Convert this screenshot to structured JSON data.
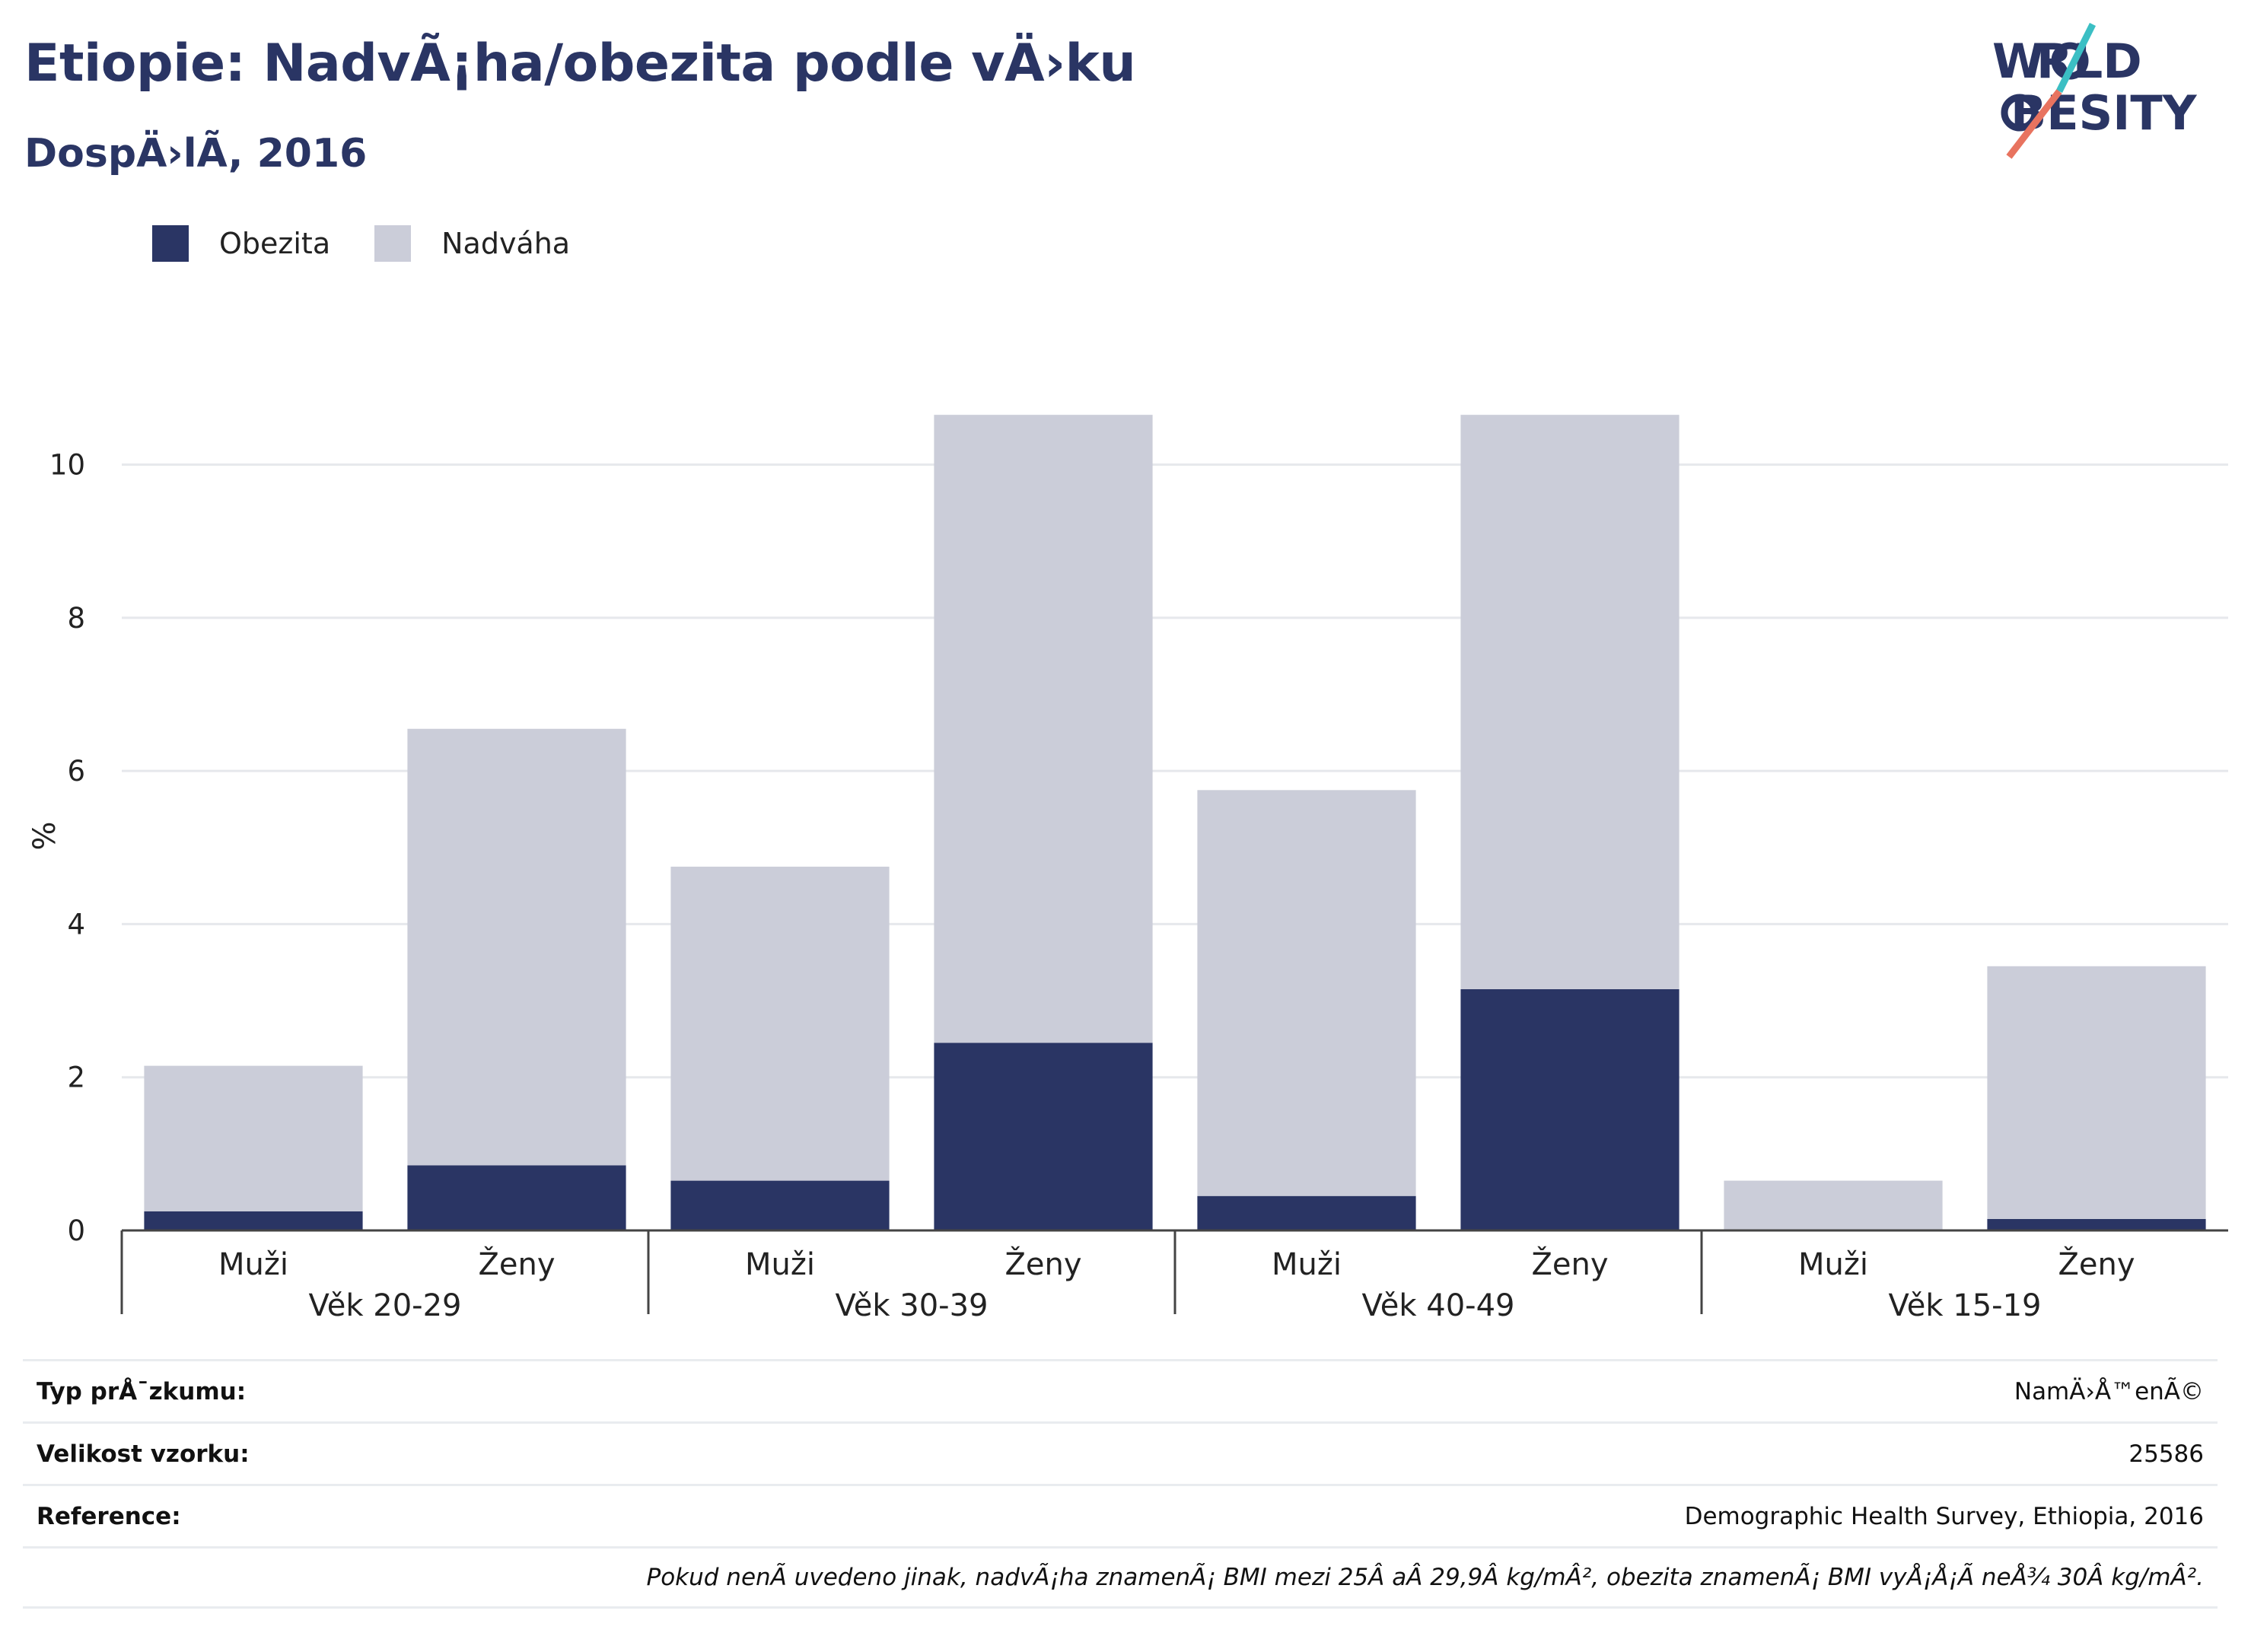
{
  "header": {
    "title": "Etiopie: NadvÃ¡ha/obezita podle vÄ›ku",
    "subtitle": "DospÄ›lÃ, 2016",
    "logo_text": "WORLD OBESITY"
  },
  "colors": {
    "obesity": "#2a3564",
    "overweight": "#cbcdd9",
    "title": "#2a3564",
    "logo_accent_teal": "#3bbfc4",
    "logo_accent_coral": "#e8735f"
  },
  "legend": {
    "items": [
      {
        "label": "Obezita",
        "color": "#2a3564"
      },
      {
        "label": "Nadváha",
        "color": "#cbcdd9"
      }
    ]
  },
  "chart_data": {
    "type": "bar",
    "stacked": true,
    "ylabel": "%",
    "ylim": [
      0,
      10.9
    ],
    "yticks": [
      0,
      2,
      4,
      6,
      8,
      10
    ],
    "grid": true,
    "legend_position": "top-left",
    "groups": [
      {
        "label": "Věk 20-29",
        "categories": [
          "Muži",
          "Ženy"
        ]
      },
      {
        "label": "Věk 30-39",
        "categories": [
          "Muži",
          "Ženy"
        ]
      },
      {
        "label": "Věk 40-49",
        "categories": [
          "Muži",
          "Ženy"
        ]
      },
      {
        "label": "Věk 15-19",
        "categories": [
          "Muži",
          "Ženy"
        ]
      }
    ],
    "series": [
      {
        "name": "Obezita",
        "values": [
          0.25,
          0.85,
          0.65,
          2.45,
          0.45,
          3.15,
          0.0,
          0.15
        ]
      },
      {
        "name": "Nadváha",
        "values": [
          1.9,
          5.7,
          4.1,
          8.2,
          5.3,
          7.5,
          0.65,
          3.3
        ]
      }
    ]
  },
  "info": {
    "rows": [
      {
        "key": "Typ prÅ¯zkumu:",
        "value": "NamÄ›Å™enÃ©"
      },
      {
        "key": "Velikost vzorku:",
        "value": "25586"
      },
      {
        "key": "Reference:",
        "value": "Demographic Health Survey, Ethiopia, 2016"
      }
    ],
    "note": "Pokud nenÃ uvedeno jinak, nadvÃ¡ha znamenÃ¡ BMI mezi 25Â aÂ 29,9Â kg/mÂ², obezita znamenÃ¡ BMI vyÅ¡Å¡Ã neÅ¾ 30Â kg/mÂ²."
  }
}
